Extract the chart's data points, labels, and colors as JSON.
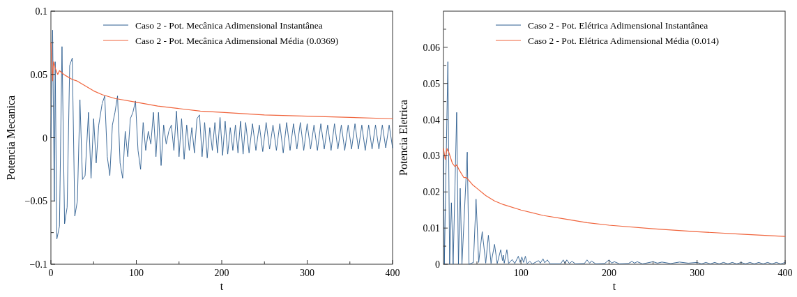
{
  "chart_data": [
    {
      "type": "line",
      "xlabel": "t",
      "ylabel": "Potencia Mecanica",
      "xlim": [
        0,
        400
      ],
      "xticks": [
        0,
        {
          "value": 50,
          "label": null
        },
        100,
        {
          "value": 150,
          "label": null
        },
        200,
        {
          "value": 250,
          "label": null
        },
        300,
        {
          "value": 350,
          "label": null
        },
        400
      ],
      "ylim": [
        -0.1,
        0.1
      ],
      "yticks": [
        -0.1,
        {
          "value": -0.075,
          "label": null
        },
        -0.05,
        {
          "value": -0.025,
          "label": null
        },
        0,
        {
          "value": 0.025,
          "label": null
        },
        0.05,
        {
          "value": 0.075,
          "label": null
        },
        0.1
      ],
      "legend": "top right",
      "series": [
        {
          "name": "Caso 2 - Pot. Mecânica Adimensional Instantânea",
          "color": "#2b5c8f",
          "x": [
            0,
            2,
            4,
            5,
            7,
            10,
            13,
            16,
            19,
            22,
            25,
            28,
            31,
            34,
            37,
            40,
            44,
            47,
            50,
            53,
            56,
            60,
            63,
            66,
            69,
            72,
            75,
            78,
            81,
            84,
            87,
            90,
            93,
            96,
            99,
            102,
            105,
            108,
            111,
            114,
            117,
            120,
            123,
            126,
            129,
            132,
            135,
            138,
            141,
            144,
            147,
            150,
            153,
            156,
            159,
            162,
            165,
            168,
            171,
            174,
            177,
            180,
            183,
            186,
            189,
            192,
            195,
            198,
            201,
            204,
            207,
            210,
            213,
            216,
            219,
            222,
            225,
            228,
            232,
            236,
            240,
            244,
            248,
            252,
            256,
            260,
            264,
            268,
            272,
            276,
            280,
            284,
            288,
            292,
            296,
            300,
            304,
            308,
            312,
            316,
            320,
            324,
            328,
            332,
            336,
            340,
            344,
            348,
            352,
            356,
            360,
            364,
            368,
            372,
            376,
            380,
            384,
            388,
            392,
            396,
            400
          ],
          "values": [
            0,
            0.085,
            -0.05,
            0.06,
            -0.08,
            -0.07,
            0.072,
            -0.068,
            -0.055,
            0.057,
            0.063,
            -0.062,
            -0.05,
            0.03,
            -0.033,
            -0.03,
            0.02,
            -0.032,
            0.015,
            -0.02,
            0.01,
            0.027,
            0.033,
            -0.015,
            -0.03,
            0.01,
            0.02,
            0.033,
            -0.02,
            -0.032,
            0.005,
            -0.015,
            0.015,
            0.02,
            0.029,
            -0.01,
            -0.025,
            0.012,
            -0.01,
            0.005,
            -0.005,
            0.02,
            -0.015,
            0.02,
            -0.022,
            0.01,
            -0.005,
            0.005,
            0.01,
            -0.01,
            0.021,
            -0.015,
            0.015,
            -0.017,
            0.01,
            -0.01,
            0.008,
            -0.012,
            0.015,
            0.018,
            -0.015,
            0.012,
            -0.016,
            0.008,
            -0.01,
            0.012,
            -0.012,
            0.016,
            -0.014,
            0.013,
            -0.013,
            0.008,
            -0.01,
            0.01,
            -0.012,
            0.013,
            -0.013,
            0.012,
            -0.012,
            0.011,
            -0.01,
            0.01,
            -0.011,
            0.012,
            -0.009,
            0.01,
            -0.01,
            0.011,
            -0.012,
            0.012,
            -0.01,
            0.011,
            -0.009,
            0.012,
            -0.01,
            0.011,
            -0.009,
            0.01,
            -0.01,
            0.011,
            -0.009,
            0.01,
            -0.01,
            0.011,
            -0.009,
            0.01,
            -0.01,
            0.01,
            -0.009,
            0.011,
            -0.009,
            0.01,
            -0.01,
            0.01,
            -0.009,
            0.01,
            -0.009,
            0.01,
            -0.008,
            0.01,
            -0.008
          ]
        },
        {
          "name": "Caso 2 - Pot. Mecânica Adimensional Média (0.0369)",
          "color": "#f0643c",
          "x": [
            0,
            1,
            2,
            3,
            5,
            8,
            10,
            15,
            20,
            25,
            30,
            40,
            50,
            60,
            75,
            100,
            125,
            150,
            175,
            200,
            250,
            300,
            350,
            400
          ],
          "values": [
            0.075,
            0.06,
            0.045,
            0.06,
            0.055,
            0.05,
            0.053,
            0.05,
            0.048,
            0.046,
            0.045,
            0.041,
            0.037,
            0.034,
            0.031,
            0.028,
            0.025,
            0.023,
            0.021,
            0.02,
            0.018,
            0.017,
            0.016,
            0.015
          ]
        }
      ]
    },
    {
      "type": "line",
      "xlabel": "t",
      "ylabel": "Potencia Eletrica",
      "xlim": [
        12,
        400
      ],
      "xticks": [
        {
          "value": 50,
          "label": null
        },
        100,
        {
          "value": 150,
          "label": null
        },
        200,
        {
          "value": 250,
          "label": null
        },
        300,
        {
          "value": 350,
          "label": null
        },
        400
      ],
      "ylim": [
        0,
        0.07
      ],
      "yticks": [
        0,
        {
          "value": 0.005,
          "label": null
        },
        0.01,
        {
          "value": 0.015,
          "label": null
        },
        0.02,
        {
          "value": 0.025,
          "label": null
        },
        0.03,
        {
          "value": 0.035,
          "label": null
        },
        0.04,
        {
          "value": 0.045,
          "label": null
        },
        0.05,
        {
          "value": 0.055,
          "label": null
        },
        0.06,
        {
          "value": 0.065,
          "label": null
        }
      ],
      "legend": "top right",
      "series": [
        {
          "name": "Caso 2 - Pot. Elétrica Adimensional Instantânea",
          "color": "#2b5c8f",
          "x": [
            12,
            13,
            17,
            19,
            21,
            23,
            27,
            29,
            31,
            33,
            39,
            41,
            46,
            49,
            52,
            56,
            60,
            63,
            66,
            70,
            73,
            77,
            79,
            80,
            81,
            84,
            86,
            90,
            93,
            97,
            99,
            101,
            103,
            105,
            107,
            110,
            113,
            120,
            122,
            125,
            127,
            130,
            133,
            145,
            148,
            150,
            152,
            155,
            158,
            162,
            172,
            175,
            178,
            180,
            185,
            195,
            200,
            203,
            206,
            212,
            222,
            226,
            229,
            232,
            238,
            250,
            255,
            260,
            270,
            280,
            290,
            300,
            305,
            310,
            315,
            320,
            325,
            330,
            335,
            340,
            345,
            350,
            355,
            360,
            365,
            370,
            375,
            380,
            385,
            390,
            395,
            400
          ],
          "values": [
            0.03,
            0,
            0.056,
            0,
            0.017,
            0,
            0.042,
            0,
            0.021,
            0,
            0.031,
            0,
            0.0005,
            0.018,
            0.0005,
            0.009,
            0.0003,
            0.008,
            0.0002,
            0.0055,
            0.0002,
            0.004,
            0.001,
            0.0025,
            0.0003,
            0.004,
            0.0002,
            0.0013,
            0.0002,
            0.0022,
            0.0005,
            0.002,
            0.0005,
            0.0022,
            0.0002,
            0.0008,
            0.0001,
            0.001,
            0.0003,
            0.0015,
            0.0004,
            0.0012,
            0.0001,
            0.0001,
            0.0012,
            0.0002,
            0.0012,
            0.0002,
            0.0008,
            0.0001,
            0.0002,
            0.0012,
            0.0003,
            0.0009,
            0.0001,
            0.0002,
            0.0012,
            0.0003,
            0.0007,
            0.0001,
            0.0002,
            0.0008,
            0.0003,
            0.0007,
            0.0001,
            0.0007,
            0.0003,
            0.0006,
            0.0002,
            0.0006,
            0.0003,
            0.0005,
            0.0001,
            0.0005,
            0.0001,
            0.0005,
            0.0001,
            0.0005,
            0.0001,
            0.0005,
            0.0001,
            0.0005,
            0.0001,
            0.0005,
            0.0001,
            0.0005,
            0.0001,
            0.0005,
            0.0001,
            0.0005,
            0.0001,
            0.0005
          ]
        },
        {
          "name": "Caso 2 - Pot. Elétrica Adimensional Média (0.014)",
          "color": "#f0643c",
          "x": [
            12,
            14,
            16,
            18,
            22,
            25,
            27,
            30,
            35,
            38,
            45,
            50,
            60,
            70,
            80,
            100,
            125,
            150,
            175,
            200,
            250,
            300,
            350,
            400
          ],
          "values": [
            0.032,
            0.029,
            0.032,
            0.031,
            0.028,
            0.027,
            0.0275,
            0.026,
            0.024,
            0.024,
            0.022,
            0.021,
            0.019,
            0.0175,
            0.0165,
            0.015,
            0.0135,
            0.0125,
            0.0115,
            0.0108,
            0.0098,
            0.009,
            0.0083,
            0.0077
          ]
        }
      ]
    }
  ]
}
